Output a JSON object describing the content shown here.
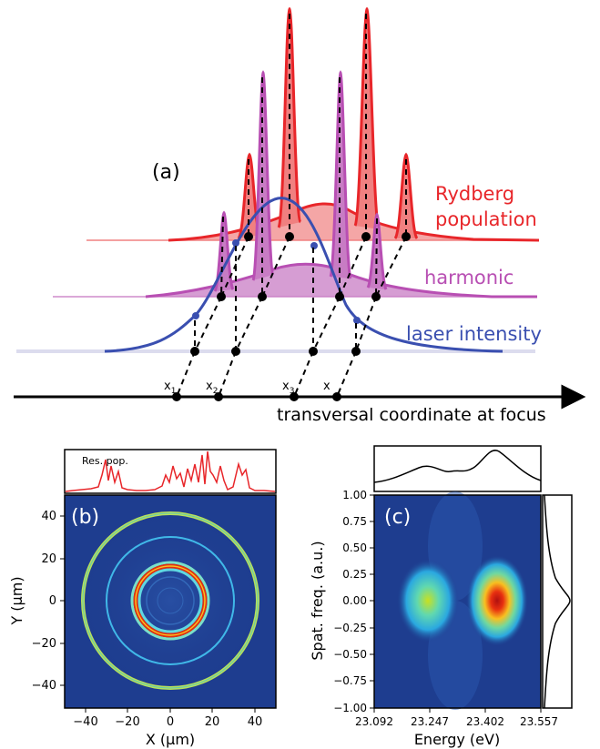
{
  "panel_a": {
    "label": "(a)",
    "rydberg_label_1": "Rydberg",
    "rydberg_label_2": "population",
    "harmonic_label": "harmonic",
    "laser_label": "laser intensity",
    "axis_label": "transversal coordinate at focus",
    "x_markers": [
      "x",
      "x",
      "x",
      "x"
    ],
    "x_subscripts": [
      "1",
      "2",
      "3",
      ""
    ],
    "colors": {
      "rydberg": "#e8262a",
      "harmonic": "#b84fb3",
      "laser": "#3a4fb0",
      "baseline": "#d8d8ec"
    }
  },
  "panel_b": {
    "label": "(b)",
    "top_label": "Res. pop.",
    "xlabel": "X (μm)",
    "ylabel": "Y (μm)",
    "xticks": [
      "−40",
      "−20",
      "0",
      "20",
      "40"
    ],
    "yticks": [
      "40",
      "20",
      "0",
      "−20",
      "−40"
    ]
  },
  "panel_c": {
    "label": "(c)",
    "xlabel": "Energy (eV)",
    "ylabel": "Spat. freq. (a.u.)",
    "xticks": [
      "23.092",
      "23.247",
      "23.402",
      "23.557"
    ],
    "yticks": [
      "1.00",
      "0.75",
      "0.50",
      "0.25",
      "0.00",
      "−0.25",
      "−0.50",
      "−0.75",
      "−1.00"
    ]
  },
  "chart_data": [
    {
      "type": "line",
      "panel": "(a)",
      "xlabel": "transversal coordinate at focus",
      "series": [
        {
          "name": "Rydberg population",
          "x": [
            0.04,
            0.29,
            0.44,
            0.61,
            0.8,
            1.0
          ],
          "values": [
            0.0,
            0.05,
            0.12,
            0.2,
            0.08,
            0.0
          ],
          "peaks": [
            0.33,
            0.46,
            0.7,
            0.83
          ]
        },
        {
          "name": "harmonic",
          "x": [
            0.0,
            0.25,
            0.4,
            0.55,
            0.75,
            1.0
          ],
          "values": [
            0.0,
            0.04,
            0.14,
            0.16,
            0.06,
            0.0
          ],
          "peaks": [
            0.3,
            0.42,
            0.58,
            0.67
          ]
        },
        {
          "name": "laser intensity",
          "x": [
            0.0,
            0.2,
            0.35,
            0.5,
            0.7,
            1.0
          ],
          "values": [
            0.0,
            0.25,
            0.88,
            1.0,
            0.3,
            0.0
          ]
        }
      ]
    },
    {
      "type": "heatmap",
      "panel": "(b)",
      "xlabel": "X (μm)",
      "ylabel": "Y (μm)",
      "xlim": [
        -50,
        50
      ],
      "ylim": [
        -50,
        50
      ],
      "rings": [
        {
          "radius": 41,
          "color": "#b8e05a"
        },
        {
          "radius": 30,
          "color": "#40b8e8"
        },
        {
          "radius": 18,
          "color": "#7be0c8"
        },
        {
          "radius": 16.5,
          "color": "#e03010"
        },
        {
          "radius": 14,
          "color": "#60d8e0"
        }
      ],
      "top_profile": {
        "label": "Res. pop."
      }
    },
    {
      "type": "heatmap",
      "panel": "(c)",
      "xlabel": "Energy (eV)",
      "ylabel": "Spat. freq. (a.u.)",
      "xlim": [
        23.092,
        23.557
      ],
      "ylim": [
        -1.0,
        1.0
      ],
      "spots": [
        {
          "x": 23.247,
          "y": 0.0,
          "intensity": 0.6
        },
        {
          "x": 23.402,
          "y": 0.0,
          "intensity": 1.0
        }
      ],
      "top_profile": {
        "x": [
          23.092,
          23.15,
          23.2,
          23.25,
          23.3,
          23.35,
          23.4,
          23.45,
          23.5,
          23.557
        ],
        "values": [
          0.1,
          0.25,
          0.45,
          0.6,
          0.55,
          0.55,
          0.75,
          0.95,
          0.5,
          0.15
        ]
      },
      "side_profile": {
        "y": [
          -1.0,
          -0.5,
          -0.25,
          0.0,
          0.25,
          0.5,
          1.0
        ],
        "values": [
          0.05,
          0.15,
          0.6,
          1.0,
          0.6,
          0.15,
          0.05
        ]
      }
    }
  ]
}
